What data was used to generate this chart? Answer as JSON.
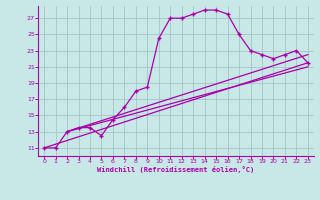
{
  "xlabel": "Windchill (Refroidissement éolien,°C)",
  "bg_color": "#c8e8e8",
  "line_color": "#aa00aa",
  "xlim": [
    -0.5,
    23.5
  ],
  "ylim": [
    10.0,
    28.5
  ],
  "yticks": [
    11,
    13,
    15,
    17,
    19,
    21,
    23,
    25,
    27
  ],
  "xticks": [
    0,
    1,
    2,
    3,
    4,
    5,
    6,
    7,
    8,
    9,
    10,
    11,
    12,
    13,
    14,
    15,
    16,
    17,
    18,
    19,
    20,
    21,
    22,
    23
  ],
  "curve1_x": [
    0,
    1,
    2,
    3,
    4,
    5,
    6,
    7,
    8,
    9,
    10,
    11,
    12,
    13,
    14,
    15,
    16,
    17,
    18,
    19,
    20,
    21,
    22,
    23
  ],
  "curve1_y": [
    11,
    11,
    13,
    13.5,
    13.5,
    12.5,
    14.5,
    16.0,
    18.0,
    18.5,
    24.5,
    27.0,
    27.0,
    27.5,
    28.0,
    28.0,
    27.5,
    25.0,
    23.0,
    22.5,
    22.0,
    22.5,
    23.0,
    21.5
  ],
  "line2_x": [
    0,
    23
  ],
  "line2_y": [
    11,
    21.5
  ],
  "line3_x": [
    2,
    23
  ],
  "line3_y": [
    13,
    22.5
  ],
  "line4_x": [
    2,
    23
  ],
  "line4_y": [
    13,
    21.0
  ]
}
